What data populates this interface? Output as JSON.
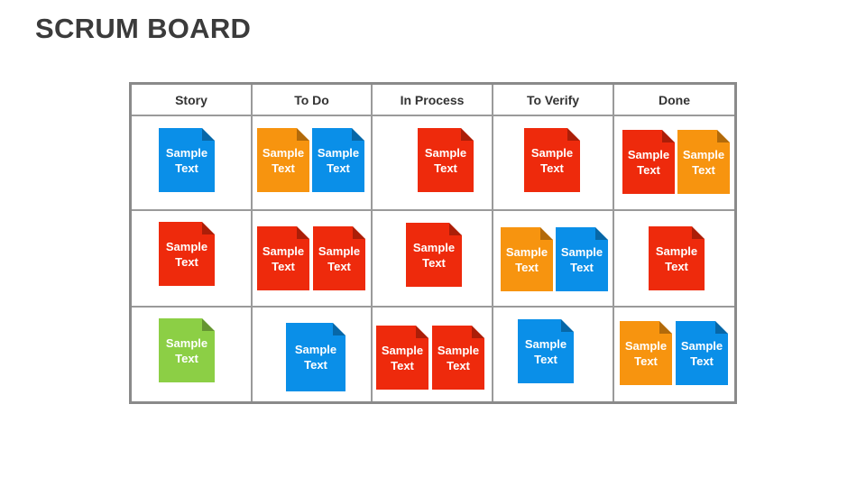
{
  "page": {
    "title": "SCRUM BOARD"
  },
  "board": {
    "columns": [
      "Story",
      "To Do",
      "In Process",
      "To Verify",
      "Done"
    ],
    "note_text": {
      "line1": "Sample",
      "line2": "Text"
    },
    "colors": {
      "blue": "#0a8fe8",
      "red": "#ee2a0c",
      "orange": "#f7940f",
      "green": "#8ccf45"
    },
    "rows": [
      [
        [
          "blue"
        ],
        [
          "orange",
          "blue"
        ],
        [
          "red"
        ],
        [
          "red"
        ],
        [
          "red",
          "orange"
        ]
      ],
      [
        [
          "red"
        ],
        [
          "red",
          "red"
        ],
        [
          "red"
        ],
        [
          "orange",
          "blue"
        ],
        [
          "red"
        ]
      ],
      [
        [
          "green"
        ],
        [
          "blue"
        ],
        [
          "red",
          "red"
        ],
        [
          "blue"
        ],
        [
          "orange",
          "blue"
        ]
      ]
    ]
  }
}
